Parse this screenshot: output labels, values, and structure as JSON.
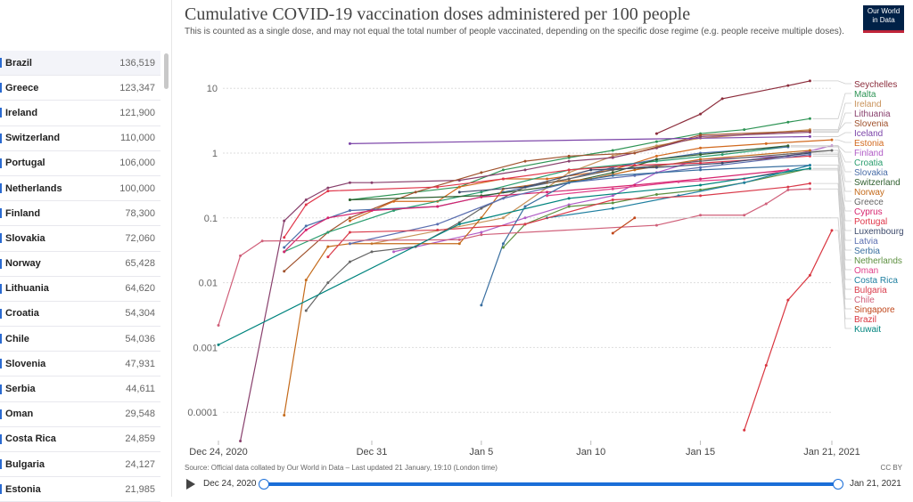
{
  "sidebar": {
    "rows": [
      {
        "name": "Brazil",
        "value": "136,519"
      },
      {
        "name": "Greece",
        "value": "123,347"
      },
      {
        "name": "Ireland",
        "value": "121,900"
      },
      {
        "name": "Switzerland",
        "value": "110,000"
      },
      {
        "name": "Portugal",
        "value": "106,000"
      },
      {
        "name": "Netherlands",
        "value": "100,000"
      },
      {
        "name": "Finland",
        "value": "78,300"
      },
      {
        "name": "Slovakia",
        "value": "72,060"
      },
      {
        "name": "Norway",
        "value": "65,428"
      },
      {
        "name": "Lithuania",
        "value": "64,620"
      },
      {
        "name": "Croatia",
        "value": "54,304"
      },
      {
        "name": "Chile",
        "value": "54,036"
      },
      {
        "name": "Slovenia",
        "value": "47,931"
      },
      {
        "name": "Serbia",
        "value": "44,611"
      },
      {
        "name": "Oman",
        "value": "29,548"
      },
      {
        "name": "Costa Rica",
        "value": "24,859"
      },
      {
        "name": "Bulgaria",
        "value": "24,127"
      },
      {
        "name": "Estonia",
        "value": "21,985"
      }
    ]
  },
  "logo": "Our World in Data",
  "footer": {
    "source": "Source: Official data collated by Our World in Data – Last updated 21 January, 19:10 (London time)",
    "license": "CC BY"
  },
  "timeline": {
    "start": "Dec 24, 2020",
    "end": "Jan 21, 2021"
  },
  "chart_data": {
    "type": "line",
    "title": "Cumulative COVID-19 vaccination doses administered per 100 people",
    "subtitle": "This is counted as a single dose, and may not equal the total number of people vaccinated, depending on the specific dose regime (e.g. people receive multiple doses).",
    "yscale": "log",
    "ylim": [
      0.0001,
      10
    ],
    "yticks": [
      {
        "v": 10,
        "label": "10"
      },
      {
        "v": 1,
        "label": "1"
      },
      {
        "v": 0.1,
        "label": "0.1"
      },
      {
        "v": 0.01,
        "label": "0.01"
      },
      {
        "v": 0.001,
        "label": "0.001"
      },
      {
        "v": 0.0001,
        "label": "0.0001"
      }
    ],
    "xlim": [
      "2020-12-24",
      "2021-01-21"
    ],
    "xticks": [
      {
        "d": "2020-12-24",
        "label": "Dec 24, 2020"
      },
      {
        "d": "2020-12-31",
        "label": "Dec 31"
      },
      {
        "d": "2021-01-05",
        "label": "Jan 5"
      },
      {
        "d": "2021-01-10",
        "label": "Jan 10"
      },
      {
        "d": "2021-01-15",
        "label": "Jan 15"
      },
      {
        "d": "2021-01-21",
        "label": "Jan 21, 2021"
      }
    ],
    "grid": true,
    "legend": "right",
    "series": [
      {
        "name": "Seychelles",
        "color": "#8c2d3c",
        "points": [
          [
            "2021-01-13",
            2.0
          ],
          [
            "2021-01-15",
            4.0
          ],
          [
            "2021-01-16",
            6.9
          ],
          [
            "2021-01-19",
            11
          ],
          [
            "2021-01-20",
            13
          ]
        ]
      },
      {
        "name": "Malta",
        "color": "#2e9455",
        "points": [
          [
            "2020-12-30",
            0.19
          ],
          [
            "2021-01-04",
            0.3
          ],
          [
            "2021-01-06",
            0.55
          ],
          [
            "2021-01-09",
            0.85
          ],
          [
            "2021-01-11",
            1.1
          ],
          [
            "2021-01-13",
            1.5
          ],
          [
            "2021-01-15",
            2.0
          ],
          [
            "2021-01-17",
            2.3
          ],
          [
            "2021-01-19",
            3.0
          ],
          [
            "2021-01-20",
            3.4
          ]
        ]
      },
      {
        "name": "Ireland",
        "color": "#c8925a",
        "points": [
          [
            "2020-12-31",
            0.04
          ],
          [
            "2021-01-06",
            0.1
          ],
          [
            "2021-01-09",
            0.5
          ],
          [
            "2021-01-11",
            0.9
          ],
          [
            "2021-01-13",
            1.3
          ],
          [
            "2021-01-15",
            1.7
          ],
          [
            "2021-01-20",
            2.3
          ]
        ]
      },
      {
        "name": "Lithuania",
        "color": "#883f6c",
        "points": [
          [
            "2020-12-25",
            3.6e-05
          ],
          [
            "2020-12-27",
            0.09
          ],
          [
            "2020-12-28",
            0.19
          ],
          [
            "2020-12-29",
            0.29
          ],
          [
            "2020-12-30",
            0.35
          ],
          [
            "2020-12-31",
            0.35
          ],
          [
            "2021-01-04",
            0.38
          ],
          [
            "2021-01-07",
            0.55
          ],
          [
            "2021-01-09",
            0.75
          ],
          [
            "2021-01-11",
            0.85
          ],
          [
            "2021-01-13",
            1.2
          ],
          [
            "2021-01-15",
            1.8
          ],
          [
            "2021-01-20",
            2.1
          ]
        ]
      },
      {
        "name": "Slovenia",
        "color": "#a0522d",
        "points": [
          [
            "2020-12-27",
            0.015
          ],
          [
            "2020-12-29",
            0.06
          ],
          [
            "2020-12-30",
            0.1
          ],
          [
            "2021-01-02",
            0.25
          ],
          [
            "2021-01-05",
            0.5
          ],
          [
            "2021-01-07",
            0.75
          ],
          [
            "2021-01-09",
            0.9
          ],
          [
            "2021-01-12",
            1.0
          ],
          [
            "2021-01-15",
            1.9
          ],
          [
            "2021-01-20",
            2.2
          ]
        ]
      },
      {
        "name": "Iceland",
        "color": "#7b44a8",
        "points": [
          [
            "2020-12-30",
            1.4
          ],
          [
            "2021-01-20",
            1.8
          ]
        ]
      },
      {
        "name": "Estonia",
        "color": "#d2691e",
        "points": [
          [
            "2020-12-30",
            0.09
          ],
          [
            "2021-01-01",
            0.18
          ],
          [
            "2021-01-03",
            0.18
          ],
          [
            "2021-01-04",
            0.3
          ],
          [
            "2021-01-06",
            0.4
          ],
          [
            "2021-01-08",
            0.4
          ],
          [
            "2021-01-11",
            0.55
          ],
          [
            "2021-01-13",
            0.9
          ],
          [
            "2021-01-15",
            1.2
          ],
          [
            "2021-01-18",
            1.4
          ],
          [
            "2021-01-21",
            1.6
          ]
        ]
      },
      {
        "name": "Finland",
        "color": "#b05cc6",
        "points": [
          [
            "2021-01-01",
            0.03
          ],
          [
            "2021-01-05",
            0.06
          ],
          [
            "2021-01-07",
            0.1
          ],
          [
            "2021-01-09",
            0.16
          ],
          [
            "2021-01-11",
            0.22
          ],
          [
            "2021-01-13",
            0.5
          ],
          [
            "2021-01-15",
            0.8
          ],
          [
            "2021-01-19",
            0.9
          ],
          [
            "2021-01-21",
            1.3
          ]
        ]
      },
      {
        "name": "Croatia",
        "color": "#2a9d6f",
        "points": [
          [
            "2020-12-27",
            0.03
          ],
          [
            "2020-12-29",
            0.06
          ],
          [
            "2021-01-01",
            0.13
          ],
          [
            "2021-01-05",
            0.25
          ],
          [
            "2021-01-09",
            0.55
          ],
          [
            "2021-01-13",
            0.75
          ],
          [
            "2021-01-16",
            0.95
          ],
          [
            "2021-01-19",
            1.25
          ]
        ]
      },
      {
        "name": "Slovakia",
        "color": "#4a6ea8",
        "points": [
          [
            "2020-12-27",
            0.035
          ],
          [
            "2020-12-28",
            0.075
          ],
          [
            "2020-12-30",
            0.13
          ],
          [
            "2021-01-03",
            0.15
          ],
          [
            "2021-01-06",
            0.25
          ],
          [
            "2021-01-09",
            0.4
          ],
          [
            "2021-01-11",
            0.6
          ],
          [
            "2021-01-13",
            0.8
          ],
          [
            "2021-01-15",
            1.0
          ],
          [
            "2021-01-19",
            1.25
          ]
        ]
      },
      {
        "name": "Switzerland",
        "color": "#2f5f2f",
        "points": [
          [
            "2020-12-30",
            0.19
          ],
          [
            "2021-01-05",
            0.22
          ],
          [
            "2021-01-08",
            0.3
          ],
          [
            "2021-01-11",
            0.5
          ],
          [
            "2021-01-13",
            0.8
          ],
          [
            "2021-01-15",
            0.95
          ],
          [
            "2021-01-19",
            1.3
          ]
        ]
      },
      {
        "name": "Norway",
        "color": "#c46a1a",
        "points": [
          [
            "2020-12-27",
            9e-05
          ],
          [
            "2020-12-28",
            0.011
          ],
          [
            "2020-12-29",
            0.036
          ],
          [
            "2020-12-30",
            0.04
          ],
          [
            "2021-01-04",
            0.04
          ],
          [
            "2021-01-05",
            0.1
          ],
          [
            "2021-01-06",
            0.28
          ],
          [
            "2021-01-08",
            0.35
          ],
          [
            "2021-01-10",
            0.4
          ],
          [
            "2021-01-12",
            0.55
          ],
          [
            "2021-01-15",
            0.8
          ],
          [
            "2021-01-20",
            1.1
          ]
        ]
      },
      {
        "name": "Greece",
        "color": "#666666",
        "points": [
          [
            "2020-12-28",
            0.0037
          ],
          [
            "2020-12-29",
            0.01
          ],
          [
            "2020-12-30",
            0.021
          ],
          [
            "2020-12-31",
            0.03
          ],
          [
            "2021-01-02",
            0.036
          ],
          [
            "2021-01-04",
            0.085
          ],
          [
            "2021-01-05",
            0.14
          ],
          [
            "2021-01-07",
            0.3
          ],
          [
            "2021-01-09",
            0.4
          ],
          [
            "2021-01-11",
            0.55
          ],
          [
            "2021-01-15",
            0.75
          ],
          [
            "2021-01-21",
            1.1
          ]
        ]
      },
      {
        "name": "Cyprus",
        "color": "#d6246e",
        "points": [
          [
            "2020-12-27",
            0.03
          ],
          [
            "2020-12-28",
            0.065
          ],
          [
            "2020-12-29",
            0.1
          ],
          [
            "2020-12-31",
            0.13
          ],
          [
            "2021-01-03",
            0.15
          ],
          [
            "2021-01-05",
            0.21
          ],
          [
            "2021-01-08",
            0.25
          ],
          [
            "2021-01-12",
            0.32
          ],
          [
            "2021-01-15",
            0.4
          ],
          [
            "2021-01-19",
            0.55
          ]
        ]
      },
      {
        "name": "Portugal",
        "color": "#e0364a",
        "points": [
          [
            "2020-12-27",
            0.05
          ],
          [
            "2020-12-28",
            0.16
          ],
          [
            "2020-12-29",
            0.26
          ],
          [
            "2021-01-03",
            0.3
          ],
          [
            "2021-01-06",
            0.4
          ],
          [
            "2021-01-09",
            0.55
          ],
          [
            "2021-01-12",
            0.65
          ],
          [
            "2021-01-15",
            0.7
          ],
          [
            "2021-01-20",
            0.9
          ]
        ]
      },
      {
        "name": "Luxembourg",
        "color": "#3d4a6b",
        "points": [
          [
            "2021-01-04",
            0.25
          ],
          [
            "2021-01-07",
            0.3
          ],
          [
            "2021-01-10",
            0.55
          ],
          [
            "2021-01-13",
            0.6
          ],
          [
            "2021-01-16",
            0.7
          ],
          [
            "2021-01-20",
            1.0
          ]
        ]
      },
      {
        "name": "Latvia",
        "color": "#5b6fb0",
        "points": [
          [
            "2020-12-30",
            0.04
          ],
          [
            "2021-01-03",
            0.08
          ],
          [
            "2021-01-06",
            0.2
          ],
          [
            "2021-01-09",
            0.35
          ],
          [
            "2021-01-12",
            0.45
          ],
          [
            "2021-01-15",
            0.6
          ],
          [
            "2021-01-20",
            0.95
          ]
        ]
      },
      {
        "name": "Serbia",
        "color": "#3a6fa0",
        "points": [
          [
            "2021-01-05",
            0.0045
          ],
          [
            "2021-01-06",
            0.04
          ],
          [
            "2021-01-07",
            0.15
          ],
          [
            "2021-01-09",
            0.35
          ],
          [
            "2021-01-11",
            0.45
          ],
          [
            "2021-01-15",
            0.55
          ],
          [
            "2021-01-20",
            0.65
          ]
        ]
      },
      {
        "name": "Netherlands",
        "color": "#5d9040",
        "points": [
          [
            "2021-01-06",
            0.035
          ],
          [
            "2021-01-07",
            0.08
          ],
          [
            "2021-01-09",
            0.15
          ],
          [
            "2021-01-11",
            0.17
          ],
          [
            "2021-01-13",
            0.23
          ],
          [
            "2021-01-15",
            0.27
          ],
          [
            "2021-01-17",
            0.35
          ],
          [
            "2021-01-20",
            0.58
          ]
        ]
      },
      {
        "name": "Oman",
        "color": "#e0408a",
        "points": [
          [
            "2021-01-08",
            0.22
          ],
          [
            "2021-01-11",
            0.28
          ],
          [
            "2021-01-14",
            0.36
          ],
          [
            "2021-01-17",
            0.4
          ],
          [
            "2021-01-19",
            0.55
          ]
        ]
      },
      {
        "name": "Costa Rica",
        "color": "#1f7fa0",
        "points": [
          [
            "2021-01-08",
            0.1
          ],
          [
            "2021-01-11",
            0.14
          ],
          [
            "2021-01-14",
            0.22
          ],
          [
            "2021-01-17",
            0.35
          ],
          [
            "2021-01-20",
            0.65
          ]
        ]
      },
      {
        "name": "Bulgaria",
        "color": "#d93a4a",
        "points": [
          [
            "2020-12-29",
            0.025
          ],
          [
            "2020-12-30",
            0.06
          ],
          [
            "2021-01-03",
            0.065
          ],
          [
            "2021-01-07",
            0.08
          ],
          [
            "2021-01-11",
            0.19
          ],
          [
            "2021-01-15",
            0.22
          ],
          [
            "2021-01-19",
            0.3
          ],
          [
            "2021-01-20",
            0.34
          ]
        ]
      },
      {
        "name": "Chile",
        "color": "#d0607a",
        "points": [
          [
            "2020-12-24",
            0.0022
          ],
          [
            "2020-12-25",
            0.026
          ],
          [
            "2020-12-26",
            0.044
          ],
          [
            "2021-01-04",
            0.046
          ],
          [
            "2021-01-05",
            0.055
          ],
          [
            "2021-01-13",
            0.077
          ],
          [
            "2021-01-15",
            0.11
          ],
          [
            "2021-01-17",
            0.11
          ],
          [
            "2021-01-18",
            0.165
          ],
          [
            "2021-01-19",
            0.27
          ],
          [
            "2021-01-20",
            0.28
          ]
        ]
      },
      {
        "name": "Singapore",
        "color": "#c0461a",
        "points": [
          [
            "2021-01-11",
            0.058
          ],
          [
            "2021-01-12",
            0.1
          ]
        ]
      },
      {
        "name": "Brazil",
        "color": "#d9353f",
        "points": [
          [
            "2021-01-17",
            5.3e-05
          ],
          [
            "2021-01-18",
            0.00053
          ],
          [
            "2021-01-19",
            0.0054
          ],
          [
            "2021-01-20",
            0.013
          ],
          [
            "2021-01-21",
            0.064
          ]
        ]
      },
      {
        "name": "Kuwait",
        "color": "#00847e",
        "points": [
          [
            "2020-12-24",
            0.0011
          ],
          [
            "2021-01-04",
            0.08
          ],
          [
            "2021-01-09",
            0.2
          ],
          [
            "2021-01-15",
            0.32
          ],
          [
            "2021-01-20",
            0.58
          ]
        ]
      }
    ]
  }
}
